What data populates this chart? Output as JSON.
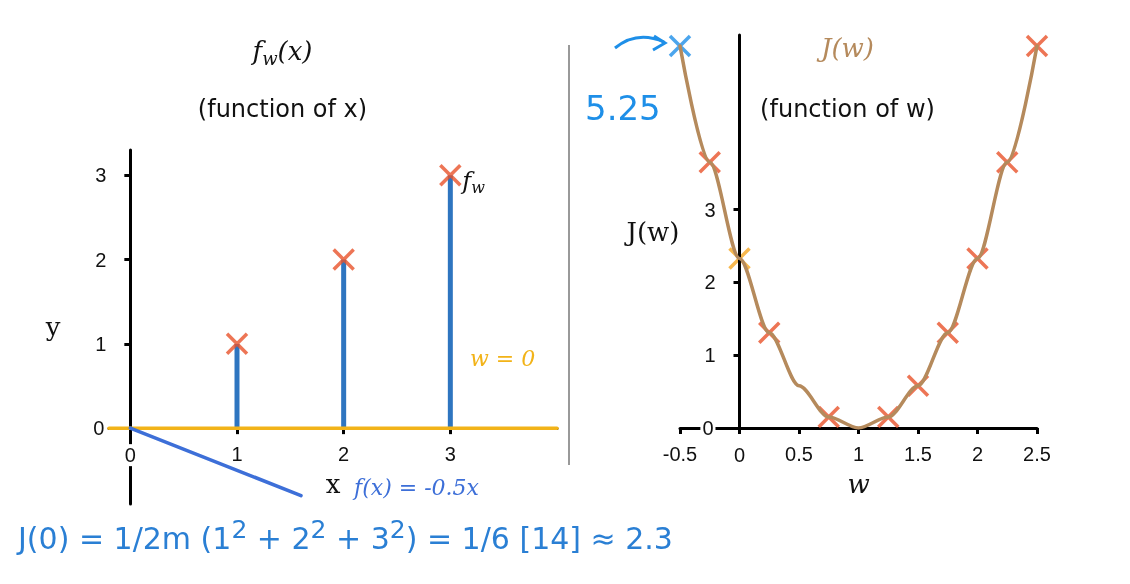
{
  "chart_data": [
    {
      "type": "scatter",
      "title": "f$_{w}$(x)",
      "subtitle": "(function of x)",
      "xlabel": "x",
      "ylabel": "y",
      "xlim": [
        -0.2,
        4
      ],
      "ylim": [
        -0.9,
        3.3
      ],
      "xticks": [
        0,
        1,
        2,
        3
      ],
      "yticks": [
        0,
        1,
        2,
        3
      ],
      "series": [
        {
          "type": "bar",
          "color": "#2e75c0",
          "x": [
            1,
            2,
            3
          ],
          "values": [
            1,
            2,
            3
          ]
        },
        {
          "color": "#e8532a",
          "marker": "cross",
          "x": [
            1,
            2,
            3
          ],
          "values": [
            1,
            2,
            3
          ]
        },
        {
          "type": "line",
          "name": "w = 0",
          "color": "#f2b318",
          "x": [
            -0.2,
            4
          ],
          "values": [
            0,
            0
          ]
        },
        {
          "type": "line",
          "name": "f(x) = -0.5x",
          "color": "#3d6fd8",
          "x": [
            0,
            1.6
          ],
          "values": [
            0,
            -0.8
          ]
        }
      ],
      "annotations": [
        {
          "text": "f$_{w}$",
          "x": 3,
          "y": 3
        },
        "J(0) = 1/2m (1$^{2}$ + 2$^{2}$ + 3$^{2}$) = 1/6 [14] ≈ 2.3"
      ]
    },
    {
      "type": "line",
      "title": "J(w)",
      "subtitle": "(function of w)",
      "xlabel": "w",
      "ylabel": "J(w)",
      "xlim": [
        -0.5,
        2.5
      ],
      "ylim": [
        0,
        5.4
      ],
      "xticks": [
        -0.5,
        0,
        0.5,
        1,
        1.5,
        2,
        2.5
      ],
      "yticks": [
        0,
        1,
        2,
        3
      ],
      "series": [
        {
          "color": "#b58a5c",
          "x": [
            -0.5,
            -0.25,
            0,
            0.25,
            0.5,
            0.75,
            1,
            1.25,
            1.5,
            1.75,
            2,
            2.25,
            2.5
          ],
          "values": [
            5.25,
            3.65,
            2.33,
            1.31,
            0.58,
            0.15,
            0,
            0.15,
            0.58,
            1.31,
            2.33,
            3.65,
            5.25
          ]
        },
        {
          "type": "scatter",
          "color": "#e8532a",
          "marker": "cross",
          "x": [
            -0.25,
            0.25,
            0.75,
            1.25,
            1.5,
            1.75,
            2,
            2.25,
            2.5
          ],
          "values": [
            3.65,
            1.31,
            0.15,
            0.15,
            0.58,
            1.31,
            2.33,
            3.65,
            5.25
          ]
        },
        {
          "type": "scatter",
          "color": "#f5a623",
          "marker": "cross",
          "x": [
            0
          ],
          "values": [
            2.33
          ]
        },
        {
          "type": "scatter",
          "color": "#1e8fe8",
          "marker": "cross",
          "x": [
            -0.5
          ],
          "values": [
            5.25
          ]
        }
      ],
      "annotations": [
        {
          "text": "5.25",
          "x": -0.5,
          "y": 5.25
        }
      ]
    }
  ]
}
